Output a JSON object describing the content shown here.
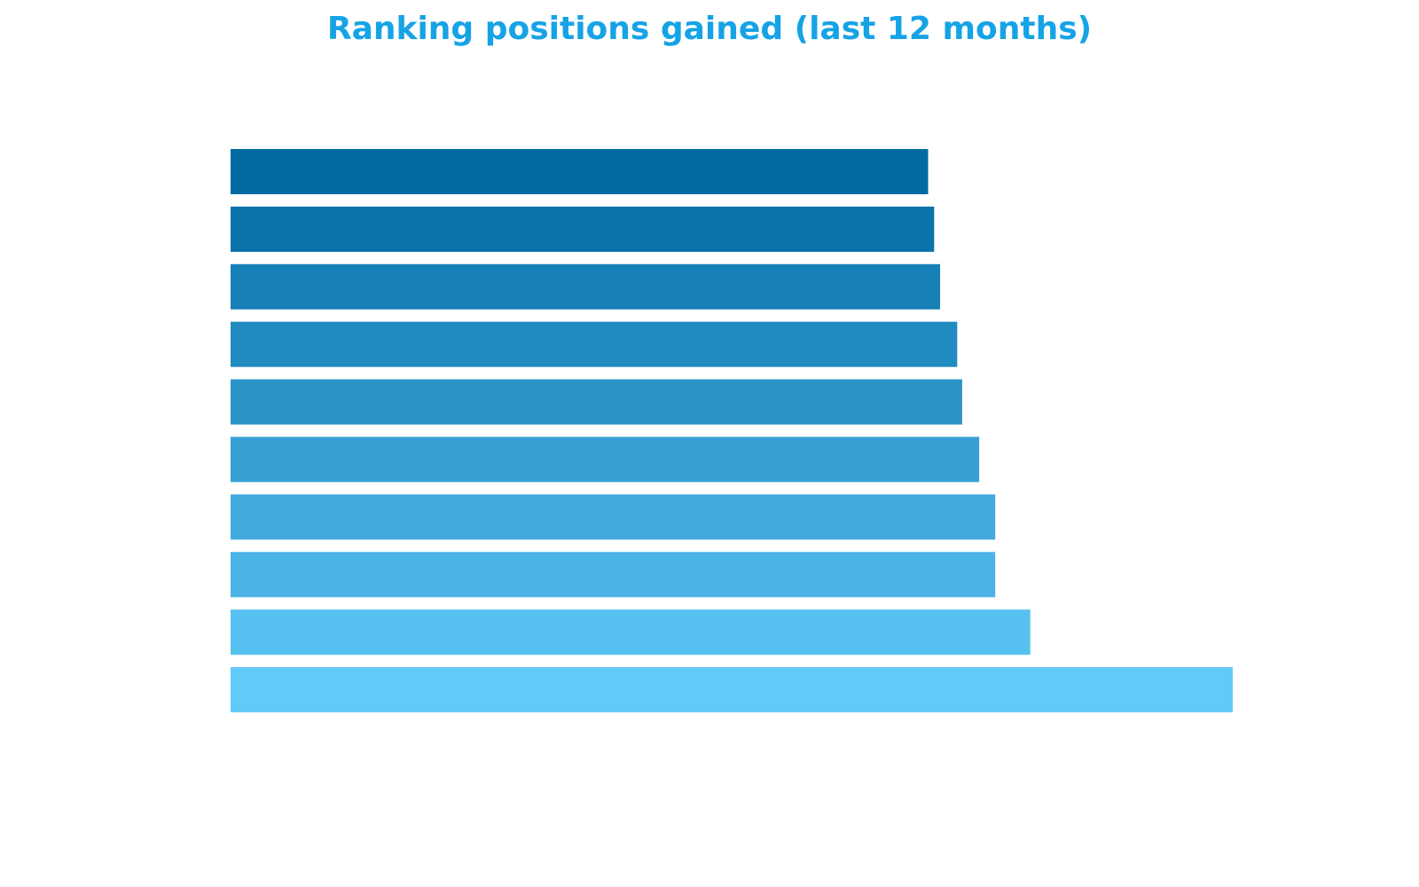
{
  "chart_data": {
    "type": "bar",
    "orientation": "horizontal",
    "title": "Ranking positions gained (last 12 months)",
    "xlabel": "",
    "ylabel": "",
    "categories": [
      "",
      "",
      "",
      "",
      "",
      "",
      "",
      "",
      "",
      ""
    ],
    "values": [
      69.6,
      70.2,
      70.8,
      72.5,
      73.0,
      74.7,
      76.3,
      76.3,
      79.8,
      100
    ],
    "xlim": [
      0,
      100
    ],
    "grid": false,
    "legend": "none",
    "colors": [
      "#006aa1",
      "#0b72aa",
      "#1780b6",
      "#208bc0",
      "#2a94c7",
      "#36a0d3",
      "#42a9dd",
      "#4bb3e6",
      "#56c0f1",
      "#62caf9"
    ]
  }
}
